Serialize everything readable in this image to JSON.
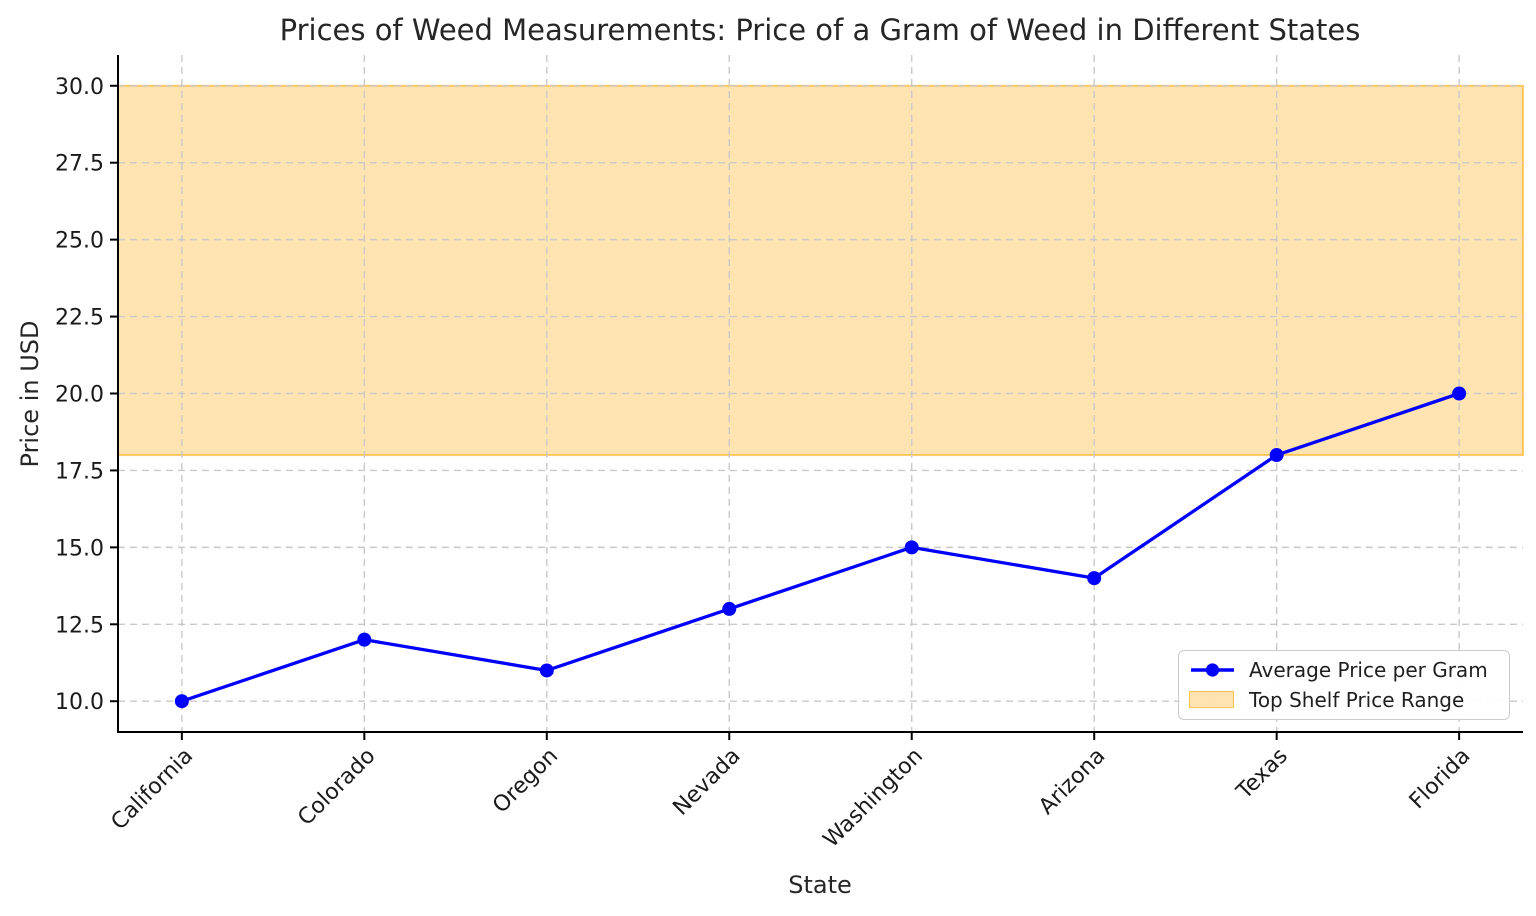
{
  "chart_data": {
    "type": "line",
    "title": "Prices of Weed Measurements: Price of a Gram of Weed in Different States",
    "xlabel": "State",
    "ylabel": "Price in USD",
    "categories": [
      "California",
      "Colorado",
      "Oregon",
      "Nevada",
      "Washington",
      "Arizona",
      "Texas",
      "Florida"
    ],
    "series": [
      {
        "name": "Average Price per Gram",
        "values": [
          10,
          12,
          11,
          13,
          15,
          14,
          18,
          20
        ],
        "color": "#0000ff",
        "marker": "circle"
      }
    ],
    "band": {
      "name": "Top Shelf Price Range",
      "y_from": 18,
      "y_to": 30
    },
    "ylim": [
      9,
      31
    ],
    "yticks": [
      "10.0",
      "12.5",
      "15.0",
      "17.5",
      "20.0",
      "22.5",
      "25.0",
      "27.5",
      "30.0"
    ],
    "grid": true,
    "x_tick_rotation": 45,
    "legend_position": "lower right",
    "legend": {
      "entries": [
        "Average Price per Gram",
        "Top Shelf Price Range"
      ]
    }
  },
  "colors": {
    "line": "#0000ff",
    "band_fill": "rgba(255,165,0,0.30)",
    "band_edge": "rgba(255,165,0,0.55)",
    "grid": "#c9c9c9",
    "spine": "#000000",
    "tick_text": "#1a1a1a"
  }
}
